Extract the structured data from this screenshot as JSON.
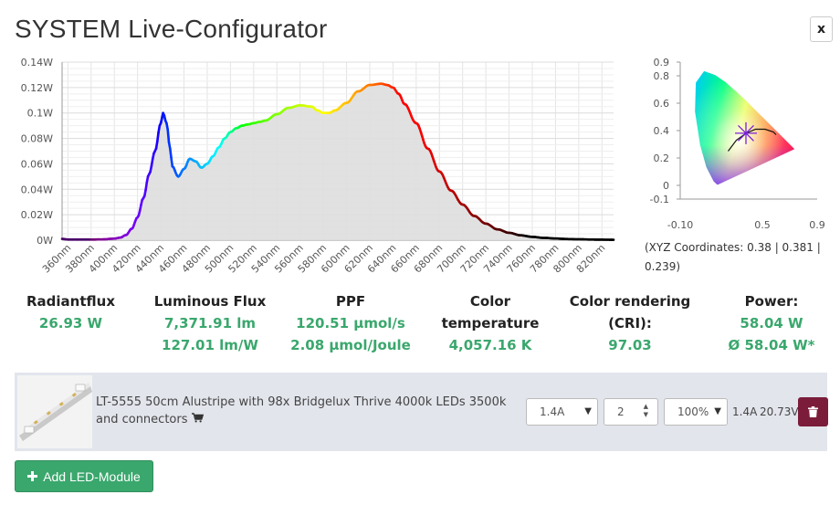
{
  "window": {
    "title": "SYSTEM Live-Configurator",
    "close_label": "x"
  },
  "spectrum_chart": {
    "chart_data": {
      "type": "area",
      "x_unit": "nm",
      "y_ticks": [
        "0W",
        "0.02W",
        "0.04W",
        "0.06W",
        "0.08W",
        "0.1W",
        "0.12W",
        "0.14W"
      ],
      "y_tick_values": [
        0,
        0.02,
        0.04,
        0.06,
        0.08,
        0.1,
        0.12,
        0.14
      ],
      "x_ticks": [
        "360nm",
        "380nm",
        "400nm",
        "420nm",
        "440nm",
        "460nm",
        "480nm",
        "500nm",
        "520nm",
        "540nm",
        "560nm",
        "580nm",
        "600nm",
        "620nm",
        "640nm",
        "660nm",
        "680nm",
        "700nm",
        "720nm",
        "740nm",
        "760nm",
        "780nm",
        "800nm",
        "820nm"
      ],
      "x_tick_values": [
        360,
        380,
        400,
        420,
        440,
        460,
        480,
        500,
        520,
        540,
        560,
        580,
        600,
        620,
        640,
        660,
        680,
        700,
        720,
        740,
        760,
        780,
        800,
        820
      ],
      "xlim": [
        355,
        830
      ],
      "ylim": [
        0,
        0.14
      ],
      "grid": true,
      "x": [
        355,
        360,
        370,
        380,
        390,
        400,
        405,
        410,
        415,
        420,
        425,
        430,
        435,
        440,
        442,
        445,
        448,
        450,
        455,
        460,
        465,
        470,
        475,
        480,
        485,
        490,
        495,
        500,
        505,
        510,
        515,
        520,
        525,
        530,
        540,
        550,
        560,
        570,
        575,
        580,
        585,
        590,
        600,
        610,
        620,
        630,
        635,
        640,
        645,
        650,
        660,
        670,
        680,
        690,
        700,
        710,
        720,
        730,
        740,
        750,
        760,
        770,
        780,
        790,
        800,
        810,
        820,
        830
      ],
      "y": [
        0.001,
        0.0005,
        0.0005,
        0.0005,
        0.0006,
        0.0012,
        0.002,
        0.004,
        0.009,
        0.018,
        0.033,
        0.052,
        0.07,
        0.092,
        0.1,
        0.092,
        0.072,
        0.058,
        0.05,
        0.056,
        0.064,
        0.062,
        0.057,
        0.06,
        0.066,
        0.073,
        0.08,
        0.085,
        0.088,
        0.09,
        0.091,
        0.092,
        0.093,
        0.094,
        0.099,
        0.104,
        0.106,
        0.105,
        0.102,
        0.1,
        0.1,
        0.102,
        0.108,
        0.117,
        0.122,
        0.123,
        0.122,
        0.12,
        0.115,
        0.107,
        0.092,
        0.072,
        0.054,
        0.039,
        0.028,
        0.019,
        0.013,
        0.0085,
        0.0058,
        0.0038,
        0.0026,
        0.0018,
        0.0013,
        0.0009,
        0.0007,
        0.0005,
        0.0004,
        0.0003
      ]
    }
  },
  "cie_chart": {
    "chart_data": {
      "type": "scatter",
      "y_ticks": [
        "0.9",
        "0.8",
        "0.6",
        "0.4",
        "0.2",
        "0",
        "-0.1"
      ],
      "y_tick_values": [
        0.9,
        0.8,
        0.6,
        0.4,
        0.2,
        0,
        -0.1
      ],
      "x_ticks": [
        "-0.10",
        "0.5",
        "0.9"
      ],
      "x_tick_values": [
        -0.1,
        0.5,
        0.9
      ],
      "xlim": [
        -0.1,
        0.9
      ],
      "ylim": [
        -0.1,
        0.9
      ],
      "marker": {
        "x": 0.38,
        "y": 0.381
      }
    },
    "caption": "(XYZ Coordinates: 0.38 | 0.381 | 0.239)"
  },
  "stats": [
    {
      "label": "Radiantflux",
      "values": [
        "26.93 W"
      ]
    },
    {
      "label": "Luminous Flux",
      "values": [
        "7,371.91 lm",
        "127.01 lm/W"
      ]
    },
    {
      "label": "PPF",
      "values": [
        "120.51 µmol/s",
        "2.08 µmol/Joule"
      ]
    },
    {
      "label_lines": [
        "Color",
        "temperature"
      ],
      "values": [
        "4,057.16 K"
      ]
    },
    {
      "label_lines": [
        "Color rendering",
        "(CRI):"
      ],
      "values": [
        "97.03"
      ]
    },
    {
      "label": "Power:",
      "values": [
        "58.04 W",
        "Ø 58.04 W*"
      ]
    }
  ],
  "module": {
    "description": "LT-5555 50cm Alustripe with 98x Bridgelux Thrive 4000k LEDs 3500k and connectors",
    "cart_icon": "shopping-cart-icon",
    "current_select": "1.4A",
    "quantity": "2",
    "dimming_select": "100%",
    "current_out": "1.4A",
    "voltage_out": "20.73V",
    "delete_icon": "trash-icon"
  },
  "add_button": {
    "label": "Add LED-Module",
    "icon": "plus-icon"
  },
  "colors": {
    "accent_green": "#3aa76d",
    "delete_red": "#7b1c3a",
    "row_bg": "#e2e5ec"
  }
}
